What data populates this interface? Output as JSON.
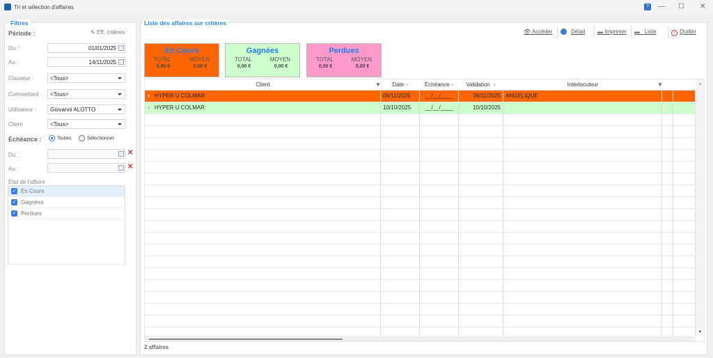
{
  "window": {
    "title": "Tri et sélection d'affaires",
    "help": "?",
    "minimize": "—",
    "maximize": "☐",
    "close": "✕"
  },
  "filters": {
    "legend": "Filtres",
    "periode": "Période :",
    "clear": "Eff. critères",
    "du_label": "Du :",
    "du_value": "01/01/2025",
    "au_label": "Au :",
    "au_value": "14/11/2025",
    "classeur_label": "Classeur :",
    "classeur_value": "<Tous>",
    "commettant_label": "Commettant :",
    "commettant_value": "<Tous>",
    "utilisateur_label": "Utilisateur :",
    "utilisateur_value": "Giovanni ALOTTO",
    "client_label": "Client",
    "client_value": "<Tous>",
    "echeance_label": "Échéance :",
    "radio_all": "Toutes",
    "radio_select": "Sélectionner",
    "echeance_selected": "Toutes",
    "ech_du_label": "Du :",
    "ech_au_label": "Au :",
    "etat_label": "État de l'affaire",
    "etats": [
      {
        "label": "En Cours",
        "checked": true
      },
      {
        "label": "Gagnées",
        "checked": true
      },
      {
        "label": "Perdues",
        "checked": true
      }
    ]
  },
  "list": {
    "legend": "Liste des affaires sur critères",
    "toolbar": {
      "acceder": "Accéder",
      "detail": "Détail",
      "imprimer": "Imprimer",
      "liste": "Liste",
      "quitter": "Quitter"
    },
    "cards": [
      {
        "title": "En Cours",
        "total_label": "TOTAL",
        "moyen_label": "MOYEN",
        "total": "0,00 €",
        "moyen": "0,00 €",
        "color": "#ff6600"
      },
      {
        "title": "Gagnées",
        "total_label": "TOTAL",
        "moyen_label": "MOYEN",
        "total": "0,00 €",
        "moyen": "0,00 €",
        "color": "#ccffcc"
      },
      {
        "title": "Perdues",
        "total_label": "TOTAL",
        "moyen_label": "MOYEN",
        "total": "0,00 €",
        "moyen": "0,00 €",
        "color": "#ff99cc"
      }
    ],
    "columns": [
      "Client",
      "Date",
      "Échéance",
      "Validation",
      "Interlocuteur"
    ],
    "rows": [
      {
        "client": "HYPER U COLMAR",
        "date": "06/11/2025",
        "echeance": "__/__/____",
        "validation": "06/11/2025",
        "interlocuteur": "ANGELIQUE",
        "color": "#ff6600",
        "selected": true
      },
      {
        "client": "HYPER U COLMAR",
        "date": "10/10/2025",
        "echeance": "__/__/____",
        "validation": "10/10/2025",
        "interlocuteur": "",
        "color": "#ccffcc",
        "selected": false
      }
    ],
    "count": "2 affaires"
  }
}
